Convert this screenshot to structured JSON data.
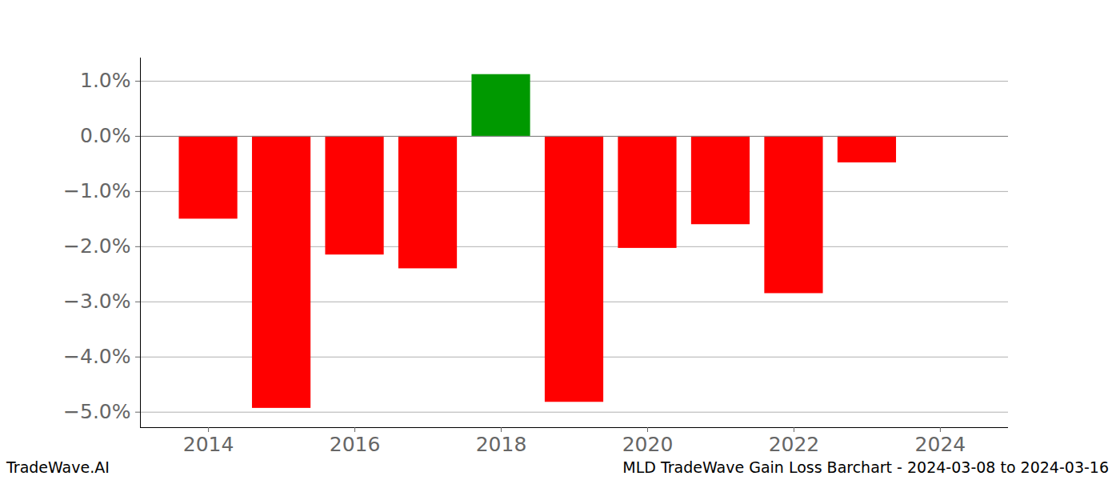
{
  "chart_data": {
    "type": "bar",
    "title": "MLD TradeWave Gain Loss Barchart - 2024-03-08 to 2024-03-16",
    "annotations": [
      "TradeWave.AI"
    ],
    "x": [
      2014,
      2015,
      2016,
      2017,
      2018,
      2019,
      2020,
      2021,
      2022,
      2023
    ],
    "values": [
      -1.5,
      -4.93,
      -2.15,
      -2.4,
      1.12,
      -4.82,
      -2.03,
      -1.6,
      -2.85,
      -0.48
    ],
    "colors": [
      "#ff0000",
      "#ff0000",
      "#ff0000",
      "#ff0000",
      "#009900",
      "#ff0000",
      "#ff0000",
      "#ff0000",
      "#ff0000",
      "#ff0000"
    ],
    "xlim": [
      2013.07,
      2024.93
    ],
    "xticks": [
      2014,
      2016,
      2018,
      2020,
      2022,
      2024
    ],
    "ylim": [
      -5.28,
      1.42
    ],
    "yticks": [
      {
        "value": -5,
        "label": "−5.0%"
      },
      {
        "value": -4,
        "label": "−4.0%"
      },
      {
        "value": -3,
        "label": "−3.0%"
      },
      {
        "value": -2,
        "label": "−2.0%"
      },
      {
        "value": -1,
        "label": "−1.0%"
      },
      {
        "value": 0,
        "label": "0.0%"
      },
      {
        "value": 1,
        "label": "1.0%"
      }
    ],
    "grid": true
  }
}
